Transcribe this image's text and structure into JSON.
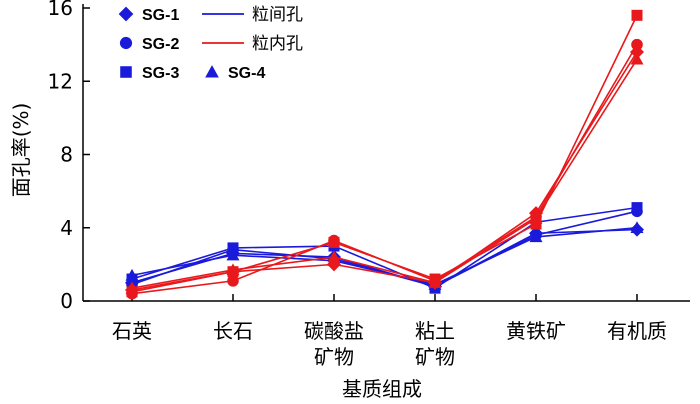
{
  "chart_data": {
    "type": "line",
    "ylabel": "面孔率(%)",
    "xlabel": "基质组成",
    "categories": [
      "石英",
      "长石",
      "碳酸盐\n矿物",
      "粘土\n矿物",
      "黄铁矿",
      "有机质"
    ],
    "yticks": [
      0,
      4,
      8,
      12,
      16
    ],
    "ylim": [
      0,
      16
    ],
    "grid": false,
    "legend_position": "top-left",
    "colors": {
      "intergranular": "#1a1adb",
      "intragranular": "#e8191c"
    },
    "legend": {
      "samples": [
        {
          "label": "SG-1",
          "marker": "diamond"
        },
        {
          "label": "SG-2",
          "marker": "circle"
        },
        {
          "label": "SG-3",
          "marker": "square"
        },
        {
          "label": "SG-4",
          "marker": "triangle"
        }
      ],
      "lines": [
        {
          "label": "粒间孔",
          "color_key": "intergranular"
        },
        {
          "label": "粒内孔",
          "color_key": "intragranular"
        }
      ]
    },
    "series": [
      {
        "sample": "SG-1",
        "pore": "intergranular",
        "marker": "diamond",
        "values": [
          1.0,
          2.6,
          2.4,
          0.8,
          3.7,
          3.9
        ]
      },
      {
        "sample": "SG-2",
        "pore": "intergranular",
        "marker": "circle",
        "values": [
          0.9,
          2.8,
          2.3,
          0.8,
          3.6,
          4.9
        ]
      },
      {
        "sample": "SG-3",
        "pore": "intergranular",
        "marker": "square",
        "values": [
          1.2,
          2.9,
          3.0,
          0.7,
          4.3,
          5.1
        ]
      },
      {
        "sample": "SG-4",
        "pore": "intergranular",
        "marker": "triangle",
        "values": [
          1.4,
          2.5,
          2.2,
          0.9,
          3.5,
          4.0
        ]
      },
      {
        "sample": "SG-1",
        "pore": "intragranular",
        "marker": "diamond",
        "values": [
          0.6,
          1.6,
          2.0,
          1.0,
          4.8,
          13.6
        ]
      },
      {
        "sample": "SG-2",
        "pore": "intragranular",
        "marker": "circle",
        "values": [
          0.4,
          1.1,
          3.3,
          1.1,
          4.6,
          14.0
        ]
      },
      {
        "sample": "SG-3",
        "pore": "intragranular",
        "marker": "square",
        "values": [
          0.5,
          1.6,
          3.2,
          1.2,
          4.2,
          15.6
        ]
      },
      {
        "sample": "SG-4",
        "pore": "intragranular",
        "marker": "triangle",
        "values": [
          0.7,
          1.7,
          2.4,
          1.0,
          4.5,
          13.2
        ]
      }
    ]
  }
}
